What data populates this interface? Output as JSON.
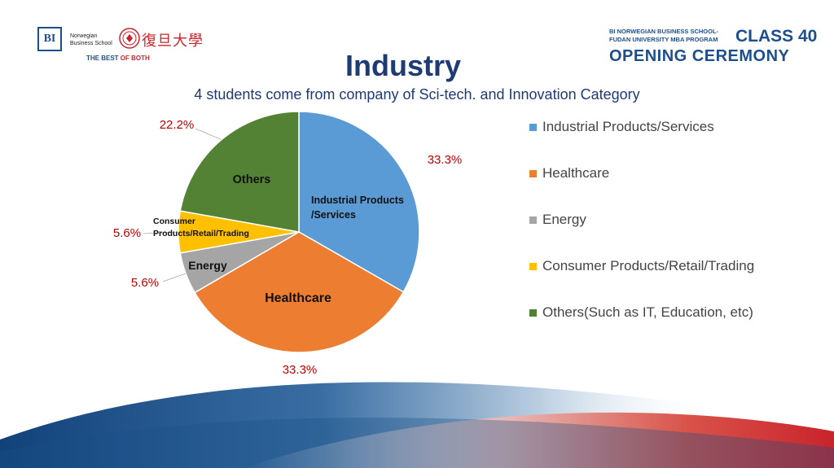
{
  "header": {
    "bi_mark": "BI",
    "bi_school": "Norwegian Business School",
    "fudan_name": "復旦大學",
    "tagline_prefix": "THE BEST",
    "tagline_suffix": "OF BOTH",
    "program": "BI NORWEGIAN BUSINESS SCHOOL-\nFUDAN UNIVERSITY MBA PROGRAM",
    "class_label": "CLASS 40",
    "ceremony": "OPENING CEREMONY"
  },
  "colors": {
    "industrial": "#5b9bd5",
    "healthcare": "#ed7d31",
    "energy": "#a5a5a5",
    "consumer": "#ffc000",
    "others": "#548235",
    "title": "#1f3b74",
    "pct_label": "#c00000"
  },
  "chart_data": {
    "type": "pie",
    "title": "Industry",
    "subtitle": "4 students come from company of Sci-tech. and Innovation Category",
    "slices": [
      {
        "key": "industrial",
        "legend": "Industrial Products/Services",
        "inner_label": "Industrial Products\n/Services",
        "value": 33.3,
        "pct_label": "33.3%",
        "color": "#5b9bd5"
      },
      {
        "key": "healthcare",
        "legend": "Healthcare",
        "inner_label": "Healthcare",
        "value": 33.3,
        "pct_label": "33.3%",
        "color": "#ed7d31"
      },
      {
        "key": "energy",
        "legend": "Energy",
        "inner_label": "Energy",
        "value": 5.6,
        "pct_label": "5.6%",
        "color": "#a5a5a5"
      },
      {
        "key": "consumer",
        "legend": "Consumer Products/Retail/Trading",
        "inner_label": "Consumer\nProducts/Retail/Trading",
        "value": 5.6,
        "pct_label": "5.6%",
        "color": "#ffc000"
      },
      {
        "key": "others",
        "legend": "Others(Such as IT, Education, etc)",
        "inner_label": "Others",
        "value": 22.2,
        "pct_label": "22.2%",
        "color": "#548235"
      }
    ],
    "legend_position": "right"
  }
}
